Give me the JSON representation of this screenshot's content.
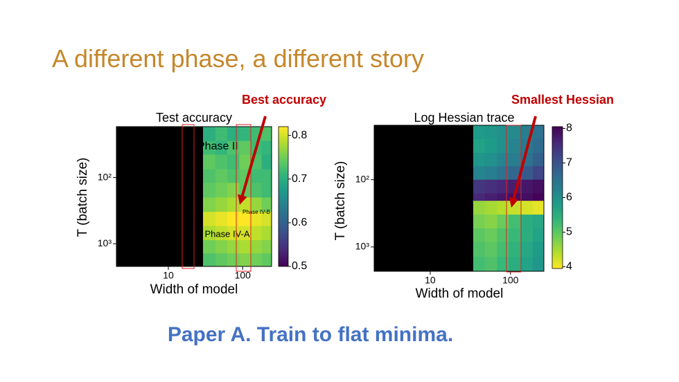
{
  "title": "A different phase, a different story",
  "footer": "Paper A. Train to flat minima.",
  "chart_data": [
    {
      "type": "heatmap",
      "title": "Test accuracy",
      "annotation": "Best accuracy",
      "xlabel": "Width of model",
      "ylabel": "T (batch size)",
      "xscale": "log",
      "yscale": "log",
      "yaxis_inverted": true,
      "xlim": [
        2,
        245
      ],
      "ylim": [
        17,
        2200
      ],
      "xticks": [
        10,
        100
      ],
      "yticks": [
        {
          "value": 100,
          "label": "10²"
        },
        {
          "value": 1000,
          "label": "10³"
        }
      ],
      "x_edges": [
        29,
        43,
        62,
        90,
        130,
        180,
        245
      ],
      "y_edges": [
        17,
        28,
        45,
        75,
        120,
        200,
        330,
        540,
        880,
        1400,
        2200
      ],
      "z": [
        [
          0.7,
          0.72,
          0.7,
          0.71,
          0.72,
          0.73
        ],
        [
          0.72,
          0.71,
          0.73,
          0.74,
          0.72,
          0.71
        ],
        [
          0.74,
          0.73,
          0.72,
          0.75,
          0.73,
          0.7
        ],
        [
          0.73,
          0.74,
          0.73,
          0.74,
          0.72,
          0.72
        ],
        [
          0.74,
          0.75,
          0.76,
          0.74,
          0.73,
          0.72
        ],
        [
          0.76,
          0.77,
          0.78,
          0.79,
          0.77,
          0.75
        ],
        [
          0.8,
          0.81,
          0.82,
          0.82,
          0.81,
          0.8
        ],
        [
          0.78,
          0.79,
          0.8,
          0.8,
          0.79,
          0.78
        ],
        [
          0.75,
          0.76,
          0.77,
          0.78,
          0.77,
          0.76
        ],
        [
          0.73,
          0.74,
          0.75,
          0.76,
          0.75,
          0.74
        ]
      ],
      "colormap": "viridis",
      "colormap_reversed": false,
      "clim": [
        0.5,
        0.82
      ],
      "cbar_ticks": [
        0.5,
        0.6,
        0.7,
        0.8
      ],
      "region_labels": [
        "Phase II",
        "Phase IV-B",
        "Phase IV-A"
      ]
    },
    {
      "type": "heatmap",
      "title": "Log Hessian trace",
      "annotation": "Smallest Hessian",
      "xlabel": "Width of model",
      "ylabel": "T (batch size)",
      "xscale": "log",
      "yscale": "log",
      "yaxis_inverted": true,
      "xlim": [
        2,
        261
      ],
      "ylim": [
        15.5,
        2300
      ],
      "xticks": [
        10,
        100
      ],
      "yticks": [
        {
          "value": 100,
          "label": "10²"
        },
        {
          "value": 1000,
          "label": "10³"
        }
      ],
      "x_edges": [
        34,
        48,
        68,
        95,
        135,
        190,
        261
      ],
      "y_edges": [
        15.5,
        25,
        40,
        63,
        100,
        160,
        206,
        330,
        530,
        850,
        1400,
        2300
      ],
      "z": [
        [
          5.8,
          5.9,
          6.0,
          6.1,
          6.3,
          6.5
        ],
        [
          5.7,
          5.8,
          6.0,
          6.2,
          6.4,
          6.6
        ],
        [
          5.9,
          6.0,
          6.2,
          6.3,
          6.5,
          6.8
        ],
        [
          6.2,
          6.3,
          6.5,
          6.7,
          6.9,
          7.2
        ],
        [
          7.4,
          7.5,
          7.6,
          7.7,
          7.8,
          7.9
        ],
        [
          7.6,
          7.7,
          7.8,
          7.9,
          7.9,
          8.0
        ],
        [
          4.6,
          4.5,
          4.4,
          4.3,
          4.2,
          4.1
        ],
        [
          4.8,
          4.7,
          4.9,
          5.2,
          5.5,
          5.6
        ],
        [
          5.0,
          4.9,
          5.1,
          5.3,
          5.5,
          5.7
        ],
        [
          5.1,
          5.0,
          5.2,
          5.4,
          5.6,
          5.8
        ],
        [
          5.2,
          5.1,
          5.3,
          5.5,
          5.7,
          5.9
        ]
      ],
      "colormap": "viridis",
      "colormap_reversed": true,
      "clim": [
        3.95,
        8.05
      ],
      "cbar_ticks": [
        4,
        5,
        6,
        7,
        8
      ]
    }
  ]
}
